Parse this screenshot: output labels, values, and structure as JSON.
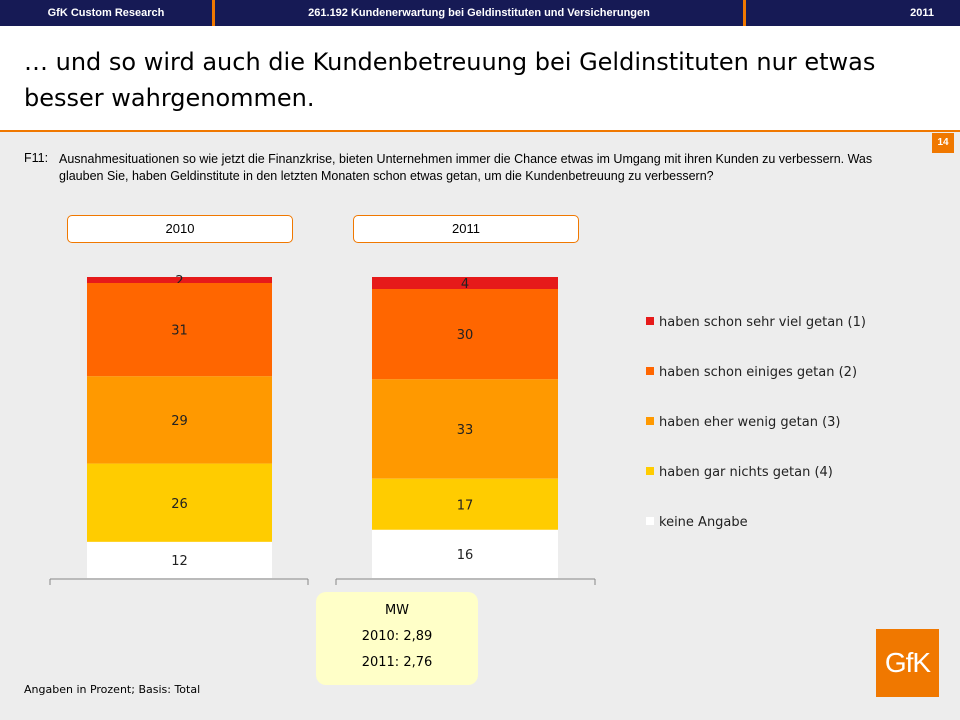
{
  "header": {
    "left": "GfK Custom Research",
    "center": "261.192 Kundenerwartung bei Geldinstituten und Versicherungen",
    "right": "2011"
  },
  "title": "… und so wird auch die Kundenbetreuung bei Geldinstituten nur etwas besser wahrgenommen.",
  "page_number": "14",
  "question": {
    "label": "F11:",
    "text": "Ausnahmesituationen so wie jetzt die Finanzkrise, bieten Unternehmen immer die Chance etwas im Umgang mit ihren Kunden zu verbessern. Was glauben Sie, haben Geldinstitute in den letzten Monaten schon etwas getan, um die Kundenbetreuung zu verbessern?"
  },
  "chart_data": {
    "type": "bar",
    "stacked": true,
    "categories": [
      "2010",
      "2011"
    ],
    "series": [
      {
        "name": "haben schon sehr viel getan (1)",
        "color": "#e61a1a",
        "values": [
          2,
          4
        ]
      },
      {
        "name": "haben schon einiges getan (2)",
        "color": "#ff6600",
        "values": [
          31,
          30
        ]
      },
      {
        "name": "haben eher wenig getan (3)",
        "color": "#ff9900",
        "values": [
          29,
          33
        ]
      },
      {
        "name": "haben gar nichts getan (4)",
        "color": "#ffcc00",
        "values": [
          26,
          17
        ]
      },
      {
        "name": "keine Angabe",
        "color": "#ffffff",
        "values": [
          12,
          16
        ]
      }
    ],
    "legend_position": "right"
  },
  "mw": {
    "label": "MW",
    "line2010": "2010: 2,89",
    "line2011": "2011: 2,76"
  },
  "footnote": "Angaben in Prozent; Basis: Total",
  "logo_text": "GfK"
}
